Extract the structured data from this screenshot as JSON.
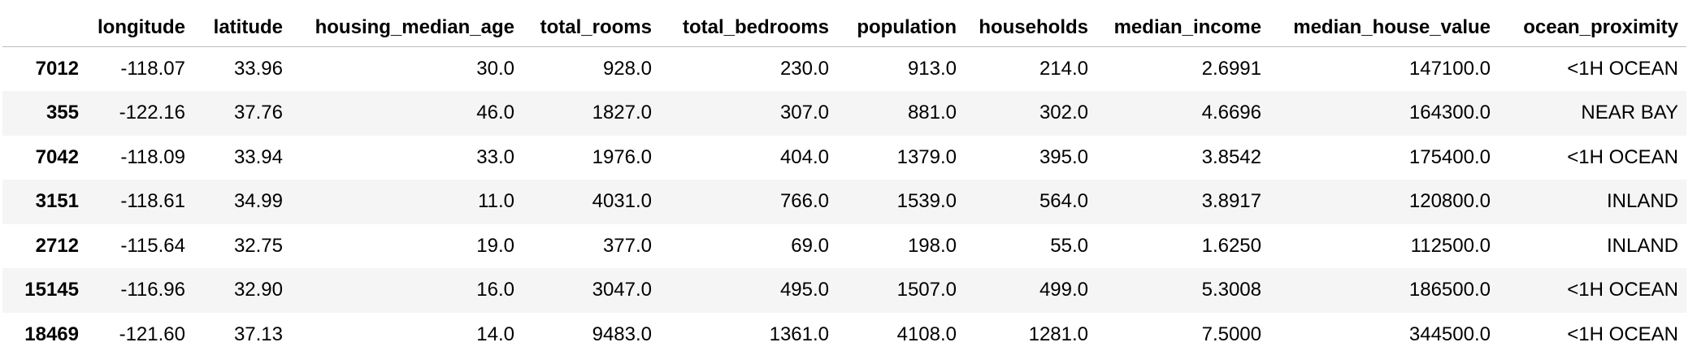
{
  "columns": [
    "",
    "longitude",
    "latitude",
    "housing_median_age",
    "total_rooms",
    "total_bedrooms",
    "population",
    "households",
    "median_income",
    "median_house_value",
    "ocean_proximity"
  ],
  "rows": [
    {
      "index": "7012",
      "cells": [
        "-118.07",
        "33.96",
        "30.0",
        "928.0",
        "230.0",
        "913.0",
        "214.0",
        "2.6991",
        "147100.0",
        "<1H OCEAN"
      ]
    },
    {
      "index": "355",
      "cells": [
        "-122.16",
        "37.76",
        "46.0",
        "1827.0",
        "307.0",
        "881.0",
        "302.0",
        "4.6696",
        "164300.0",
        "NEAR BAY"
      ]
    },
    {
      "index": "7042",
      "cells": [
        "-118.09",
        "33.94",
        "33.0",
        "1976.0",
        "404.0",
        "1379.0",
        "395.0",
        "3.8542",
        "175400.0",
        "<1H OCEAN"
      ]
    },
    {
      "index": "3151",
      "cells": [
        "-118.61",
        "34.99",
        "11.0",
        "4031.0",
        "766.0",
        "1539.0",
        "564.0",
        "3.8917",
        "120800.0",
        "INLAND"
      ]
    },
    {
      "index": "2712",
      "cells": [
        "-115.64",
        "32.75",
        "19.0",
        "377.0",
        "69.0",
        "198.0",
        "55.0",
        "1.6250",
        "112500.0",
        "INLAND"
      ]
    },
    {
      "index": "15145",
      "cells": [
        "-116.96",
        "32.90",
        "16.0",
        "3047.0",
        "495.0",
        "1507.0",
        "499.0",
        "5.3008",
        "186500.0",
        "<1H OCEAN"
      ]
    },
    {
      "index": "18469",
      "cells": [
        "-121.60",
        "37.13",
        "14.0",
        "9483.0",
        "1361.0",
        "4108.0",
        "1281.0",
        "7.5000",
        "344500.0",
        "<1H OCEAN"
      ]
    }
  ]
}
